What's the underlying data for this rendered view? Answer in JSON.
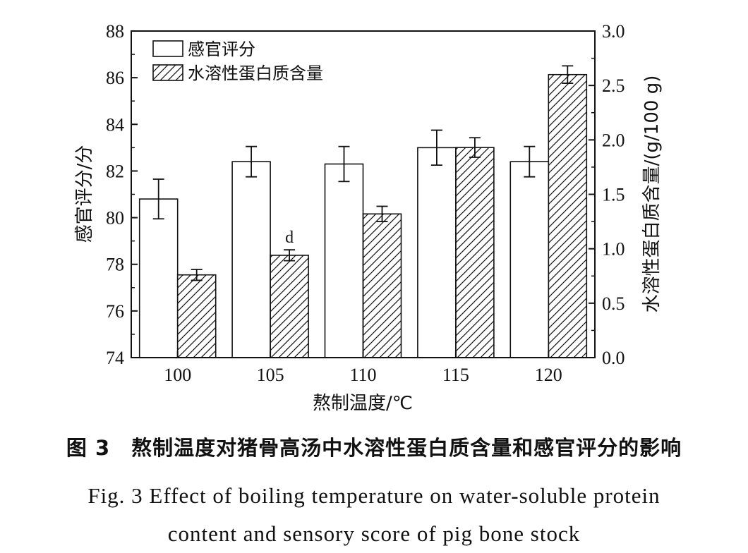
{
  "chart_data": {
    "type": "bar",
    "categories": [
      "100",
      "105",
      "110",
      "115",
      "120"
    ],
    "xlabel": "熬制温度/℃",
    "ylabel_left": "感官评分/分",
    "ylabel_right": "水溶性蛋白质含量/(g/100 g)",
    "ylim_left": [
      74,
      88
    ],
    "yticks_left": [
      "74",
      "76",
      "78",
      "80",
      "82",
      "84",
      "86",
      "88"
    ],
    "ylim_right": [
      0.0,
      3.0
    ],
    "yticks_right": [
      "0.0",
      "0.5",
      "1.0",
      "1.5",
      "2.0",
      "2.5",
      "3.0"
    ],
    "legend_position": "top-left",
    "series": [
      {
        "name": "感官评分",
        "axis": "left",
        "pattern": "open",
        "values": [
          80.8,
          82.4,
          82.3,
          83.0,
          82.4
        ],
        "errors": [
          0.85,
          0.65,
          0.75,
          0.75,
          0.65
        ]
      },
      {
        "name": "水溶性蛋白质含量",
        "axis": "right",
        "pattern": "hatched",
        "values": [
          0.76,
          0.94,
          1.32,
          1.93,
          2.6
        ],
        "errors": [
          0.05,
          0.05,
          0.07,
          0.09,
          0.08
        ]
      }
    ],
    "annotations": [
      {
        "text": "d",
        "category": "105",
        "series": "水溶性蛋白质含量"
      }
    ]
  },
  "caption": {
    "chinese": "图 3　熬制温度对猪骨高汤中水溶性蛋白质含量和感官评分的影响",
    "english_line1": "Fig. 3 Effect of boiling temperature on water-soluble protein",
    "english_line2": "content and sensory score of pig bone stock"
  },
  "colors": {
    "axis": "#111111",
    "bar_fill": "#ffffff",
    "hatch": "#111111"
  }
}
